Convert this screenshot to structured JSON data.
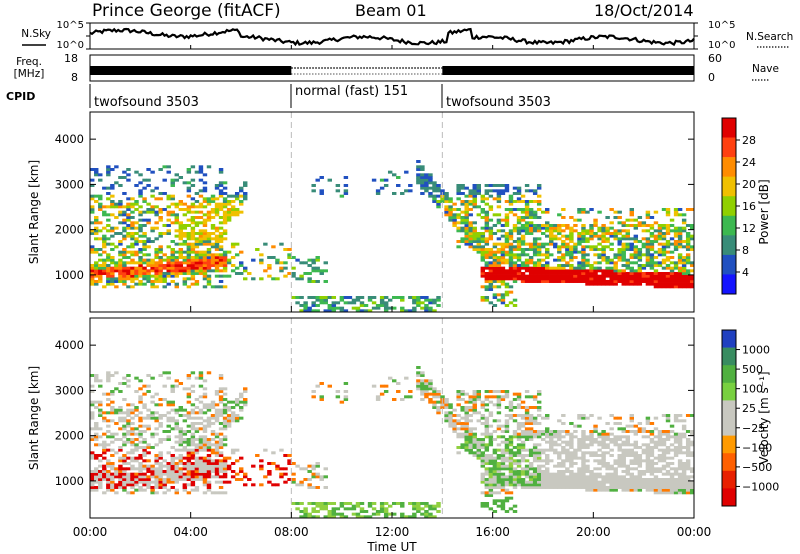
{
  "header": {
    "station": "Prince George (fitACF)",
    "beam": "Beam 01",
    "date": "18/Oct/2014"
  },
  "colors": {
    "dashed_line": "#bbbbbb",
    "ground_scatter": "#c8c8c0"
  },
  "chart_data": [
    {
      "type": "line",
      "panel": "noise",
      "left_label": "N.Sky",
      "right_label": "N.Search",
      "y_tick_labels_left": [
        "10^5",
        "10^0"
      ],
      "y_tick_labels_right": [
        "10^5",
        "10^0"
      ]
    },
    {
      "type": "bar",
      "panel": "frequency",
      "left_label": [
        "Freq.",
        "[MHz]"
      ],
      "right_label": "Nave",
      "y_tick_labels_left": [
        "18",
        "8"
      ],
      "y_tick_labels_right": [
        "60",
        "0"
      ],
      "segments": [
        {
          "start_h": 0,
          "end_h": 8,
          "style": "solid"
        },
        {
          "start_h": 8,
          "end_h": 14,
          "style": "dotted"
        },
        {
          "start_h": 14,
          "end_h": 24,
          "style": "solid"
        }
      ]
    },
    {
      "type": "table",
      "panel": "cpid",
      "label": "CPID",
      "modes": [
        {
          "start_h": 0,
          "end_h": 8,
          "name": "twofsound 3503"
        },
        {
          "start_h": 8,
          "end_h": 14,
          "name": "normal (fast) 151"
        },
        {
          "start_h": 14,
          "end_h": 24,
          "name": "twofsound 3503"
        }
      ]
    },
    {
      "type": "heatmap",
      "panel": "power",
      "ylabel": "Slant Range [km]",
      "ylim": [
        180,
        4600
      ],
      "yticks": [
        1000,
        2000,
        3000,
        4000
      ],
      "colorbar_label": "Power [dB]",
      "colorbar_ticks": [
        "28",
        "24",
        "20",
        "16",
        "12",
        "8",
        "4"
      ],
      "colorbar_colors": [
        "#e00000",
        "#ff4010",
        "#ff8c00",
        "#f0c000",
        "#90d000",
        "#3cb850",
        "#388c78",
        "#2050c0",
        "#1414ff"
      ],
      "mode_change_h": [
        8,
        14
      ]
    },
    {
      "type": "heatmap",
      "panel": "velocity",
      "ylabel": "Slant Range [km]",
      "ylim": [
        180,
        4600
      ],
      "yticks": [
        1000,
        2000,
        3000,
        4000
      ],
      "xlabel": "Time UT",
      "x_tick_labels": [
        "00:00",
        "04:00",
        "08:00",
        "12:00",
        "16:00",
        "20:00",
        "00:00"
      ],
      "xlim": [
        0,
        24
      ],
      "colorbar_label": "Velocity [m s⁻¹]",
      "colorbar_ticks": [
        "1000",
        "500",
        "100",
        "25",
        "−25",
        "−100",
        "−500",
        "−1000"
      ],
      "colorbar_colors": [
        "#2040c0",
        "#388c60",
        "#50b040",
        "#78d040",
        "#c8c8c0",
        "#c8c8c0",
        "#ff9a00",
        "#ff6000",
        "#e82000",
        "#e00000"
      ],
      "mode_change_h": [
        8,
        14
      ]
    }
  ]
}
